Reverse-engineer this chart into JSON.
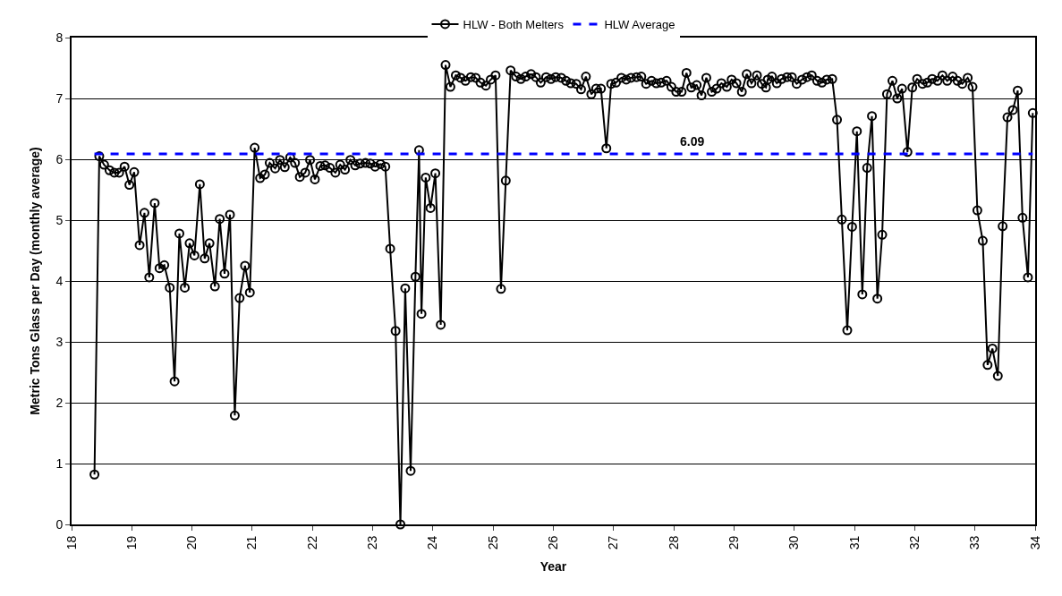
{
  "chart_data": {
    "type": "line",
    "xlabel": "Year",
    "ylabel": "Metric Tons Glass per Day (monthly average)",
    "xlim": [
      18,
      34
    ],
    "xticks": [
      18,
      19,
      20,
      21,
      22,
      23,
      24,
      25,
      26,
      27,
      28,
      29,
      30,
      31,
      32,
      33,
      34
    ],
    "ylim": [
      0,
      8
    ],
    "yticks": [
      0,
      1,
      2,
      3,
      4,
      5,
      6,
      7,
      8
    ],
    "grid": "y",
    "legend": "top",
    "marker": "circle",
    "line_style": "solid",
    "series": [
      {
        "name": "HLW - Both Melters",
        "color": "#000000",
        "x": [
          18.38,
          18.46,
          18.54,
          18.63,
          18.71,
          18.79,
          18.88,
          18.96,
          19.04,
          19.13,
          19.21,
          19.29,
          19.38,
          19.46,
          19.54,
          19.63,
          19.71,
          19.79,
          19.88,
          19.96,
          20.04,
          20.13,
          20.21,
          20.29,
          20.38,
          20.46,
          20.54,
          20.63,
          20.71,
          20.79,
          20.88,
          20.96,
          21.04,
          21.13,
          21.21,
          21.29,
          21.38,
          21.46,
          21.54,
          21.63,
          21.71,
          21.79,
          21.88,
          21.96,
          22.04,
          22.13,
          22.21,
          22.29,
          22.38,
          22.46,
          22.54,
          22.63,
          22.71,
          22.79,
          22.88,
          22.96,
          23.04,
          23.13,
          23.21,
          23.29,
          23.38,
          23.46,
          23.54,
          23.63,
          23.71,
          23.77,
          23.81,
          23.88,
          23.96,
          24.04,
          24.13,
          24.21,
          24.29,
          24.38,
          24.46,
          24.54,
          24.63,
          24.71,
          24.79,
          24.88,
          24.96,
          25.04,
          25.13,
          25.21,
          25.29,
          25.38,
          25.46,
          25.54,
          25.63,
          25.71,
          25.79,
          25.88,
          25.96,
          26.04,
          26.13,
          26.21,
          26.29,
          26.38,
          26.46,
          26.54,
          26.63,
          26.71,
          26.79,
          26.88,
          26.96,
          27.04,
          27.13,
          27.21,
          27.29,
          27.38,
          27.46,
          27.54,
          27.63,
          27.71,
          27.79,
          27.88,
          27.96,
          28.04,
          28.13,
          28.21,
          28.29,
          28.38,
          28.46,
          28.54,
          28.63,
          28.71,
          28.79,
          28.88,
          28.96,
          29.04,
          29.13,
          29.21,
          29.29,
          29.38,
          29.46,
          29.53,
          29.56,
          29.63,
          29.71,
          29.79,
          29.88,
          29.96,
          30.04,
          30.13,
          30.21,
          30.29,
          30.38,
          30.46,
          30.54,
          30.63,
          30.71,
          30.79,
          30.88,
          30.96,
          31.04,
          31.13,
          31.21,
          31.29,
          31.38,
          31.46,
          31.54,
          31.63,
          31.71,
          31.79,
          31.88,
          31.96,
          32.04,
          32.13,
          32.21,
          32.29,
          32.38,
          32.46,
          32.54,
          32.63,
          32.71,
          32.79,
          32.88,
          32.96,
          33.04,
          33.13,
          33.21,
          33.29,
          33.38,
          33.46,
          33.54,
          33.63,
          33.71,
          33.79,
          33.88,
          33.96
        ],
        "values": [
          0.82,
          6.05,
          5.91,
          5.82,
          5.78,
          5.78,
          5.88,
          5.58,
          5.79,
          4.59,
          5.12,
          4.06,
          5.28,
          4.21,
          4.26,
          3.89,
          2.35,
          4.78,
          3.89,
          4.62,
          4.42,
          5.59,
          4.37,
          4.62,
          3.91,
          5.02,
          4.12,
          5.09,
          1.79,
          3.72,
          4.25,
          3.81,
          6.19,
          5.69,
          5.75,
          5.94,
          5.85,
          5.99,
          5.87,
          6.03,
          5.94,
          5.71,
          5.78,
          5.99,
          5.67,
          5.89,
          5.9,
          5.86,
          5.78,
          5.91,
          5.83,
          5.99,
          5.9,
          5.93,
          5.94,
          5.93,
          5.88,
          5.92,
          5.88,
          4.53,
          3.18,
          0,
          3.88,
          0.88,
          4.07,
          6.15,
          3.46,
          5.7,
          5.2,
          5.77,
          3.28,
          7.55,
          7.19,
          7.38,
          7.34,
          7.29,
          7.35,
          7.34,
          7.26,
          7.21,
          7.31,
          7.38,
          3.87,
          5.65,
          7.46,
          7.36,
          7.32,
          7.36,
          7.4,
          7.35,
          7.26,
          7.35,
          7.32,
          7.35,
          7.34,
          7.29,
          7.25,
          7.24,
          7.15,
          7.36,
          7.07,
          7.16,
          7.16,
          6.18,
          7.24,
          7.26,
          7.34,
          7.31,
          7.34,
          7.35,
          7.36,
          7.24,
          7.29,
          7.25,
          7.26,
          7.29,
          7.19,
          7.11,
          7.11,
          7.42,
          7.18,
          7.22,
          7.05,
          7.34,
          7.11,
          7.16,
          7.25,
          7.19,
          7.31,
          7.25,
          7.11,
          7.4,
          7.25,
          7.38,
          7.24,
          7.18,
          7.31,
          7.36,
          7.25,
          7.32,
          7.35,
          7.35,
          7.24,
          7.31,
          7.35,
          7.38,
          7.29,
          7.26,
          7.31,
          7.32,
          6.65,
          5.01,
          3.19,
          4.89,
          6.46,
          3.78,
          5.86,
          6.71,
          3.71,
          4.76,
          7.07,
          7.29,
          7.0,
          7.16,
          6.12,
          7.18,
          7.32,
          7.24,
          7.26,
          7.32,
          7.29,
          7.38,
          7.29,
          7.36,
          7.29,
          7.24,
          7.34,
          7.19,
          5.16,
          4.66,
          2.62,
          2.89,
          2.44,
          4.9,
          6.69,
          6.81,
          7.13,
          5.04,
          4.06,
          6.76
        ]
      }
    ],
    "ref_lines": [
      {
        "axis": "y",
        "value": 6.09,
        "label": "HLW Average",
        "color": "#0000ff",
        "line_style": "dashed"
      }
    ],
    "annotations": [
      {
        "text": "6.09",
        "x": 28.3,
        "y": 6.09
      }
    ]
  }
}
